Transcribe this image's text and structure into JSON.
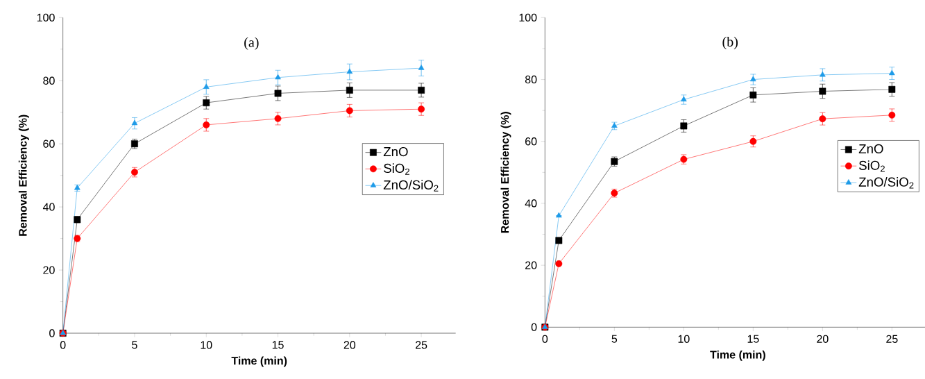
{
  "chart_data": [
    {
      "type": "line",
      "title": "(a)",
      "xlabel": "Time (min)",
      "ylabel": "Removal Efficiency (%)",
      "x": [
        0,
        1,
        5,
        10,
        15,
        20,
        25
      ],
      "xlim": [
        0,
        27.4
      ],
      "xticks": [
        0,
        5,
        10,
        15,
        20,
        25
      ],
      "ylim": [
        0,
        100
      ],
      "yticks": [
        0,
        20,
        40,
        60,
        80,
        100
      ],
      "legend": "right",
      "grid": false,
      "line_style": "solid",
      "series": [
        {
          "name": "ZnO",
          "color": "#000000",
          "marker": "square",
          "values": [
            0,
            36,
            60,
            73,
            76,
            77,
            77
          ],
          "errors": [
            null,
            1,
            1.5,
            2,
            2.3,
            2.3,
            2.2
          ]
        },
        {
          "name": "SiO$_{2}$",
          "color": "#ff0000",
          "marker": "circle",
          "values": [
            0,
            30,
            51,
            66,
            68,
            70.5,
            71
          ],
          "errors": [
            null,
            1,
            1.5,
            2,
            2,
            2,
            2
          ]
        },
        {
          "name": "ZnO/SiO$_{2}$",
          "color": "#1e9be8",
          "marker": "triangle",
          "values": [
            0,
            46,
            66.5,
            78,
            81,
            82.8,
            84
          ],
          "errors": [
            null,
            1,
            1.8,
            2.3,
            2.3,
            2.5,
            2.5
          ]
        }
      ]
    },
    {
      "type": "line",
      "title": "(b)",
      "xlabel": "Time (min)",
      "ylabel": "Removal Efficiency (%)",
      "x": [
        0,
        1,
        5,
        10,
        15,
        20,
        25
      ],
      "xlim": [
        0,
        27.8
      ],
      "xticks": [
        0,
        5,
        10,
        15,
        20,
        25
      ],
      "ylim": [
        0,
        100
      ],
      "yticks": [
        0,
        20,
        40,
        60,
        80,
        100
      ],
      "legend": "right",
      "grid": false,
      "line_style": "solid",
      "series": [
        {
          "name": "ZnO",
          "color": "#000000",
          "marker": "square",
          "values": [
            0,
            28,
            53.5,
            65,
            75,
            76.2,
            76.8
          ],
          "errors": [
            null,
            null,
            1.5,
            2,
            2.3,
            2.3,
            2.2
          ]
        },
        {
          "name": "SiO$_{2}$",
          "color": "#ff0000",
          "marker": "circle",
          "values": [
            0,
            20.5,
            43.3,
            54.2,
            60,
            67.3,
            68.5
          ],
          "errors": [
            null,
            null,
            1.3,
            1.5,
            1.8,
            2,
            2
          ]
        },
        {
          "name": "ZnO/SiO$_{2}$",
          "color": "#1e9be8",
          "marker": "triangle",
          "values": [
            0,
            36,
            65,
            73.5,
            80,
            81.5,
            82
          ],
          "errors": [
            null,
            null,
            1.2,
            1.5,
            1.7,
            2,
            2
          ]
        }
      ]
    }
  ]
}
